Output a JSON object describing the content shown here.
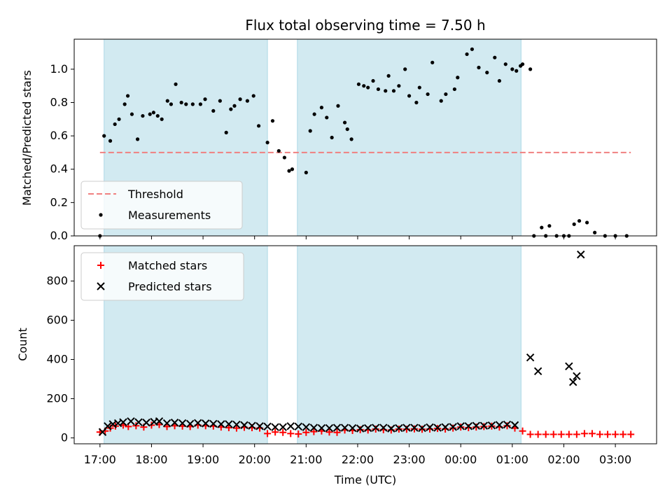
{
  "chart_data": {
    "title": "Flux total observing time = 7.50 h",
    "xlabel": "Time (UTC)",
    "x_ticks": [
      "17:00",
      "18:00",
      "19:00",
      "20:00",
      "21:00",
      "22:00",
      "23:00",
      "00:00",
      "01:00",
      "02:00",
      "03:00"
    ],
    "x_range_hours": [
      16.5,
      27.8
    ],
    "shaded_intervals_hours": [
      [
        17.08,
        20.25
      ],
      [
        20.83,
        25.17
      ]
    ],
    "colors": {
      "shade": "#add8e6",
      "threshold": "#f08080",
      "measurements": "#000000",
      "matched": "#ff0000",
      "predicted": "#000000"
    },
    "panels": [
      {
        "type": "scatter",
        "ylabel": "Matched/Predicted stars",
        "ylim": [
          0,
          1.18
        ],
        "y_ticks": [
          "0.0",
          "0.2",
          "0.4",
          "0.6",
          "0.8",
          "1.0"
        ],
        "legend": {
          "placement": "lower-left",
          "entries": [
            "Threshold",
            "Measurements"
          ]
        },
        "threshold": {
          "name": "Threshold",
          "value": 0.5,
          "x_start": 17.0,
          "x_end": 27.3
        },
        "series": [
          {
            "name": "Measurements",
            "x": [
              17.0,
              17.08,
              17.2,
              17.29,
              17.37,
              17.48,
              17.54,
              17.62,
              17.73,
              17.83,
              17.97,
              18.04,
              18.12,
              18.2,
              18.31,
              18.38,
              18.47,
              18.58,
              18.67,
              18.8,
              18.95,
              19.04,
              19.2,
              19.33,
              19.45,
              19.54,
              19.61,
              19.72,
              19.86,
              19.98,
              20.08,
              20.25,
              20.35,
              20.47,
              20.58,
              20.67,
              20.73,
              21.0,
              21.08,
              21.16,
              21.3,
              21.4,
              21.5,
              21.62,
              21.75,
              21.8,
              21.88,
              22.02,
              22.12,
              22.2,
              22.3,
              22.4,
              22.54,
              22.6,
              22.7,
              22.8,
              22.92,
              23.0,
              23.14,
              23.2,
              23.36,
              23.45,
              23.62,
              23.71,
              23.88,
              23.94,
              24.12,
              24.22,
              24.35,
              24.51,
              24.66,
              24.75,
              24.87,
              25.0,
              25.08,
              25.16,
              25.2,
              25.35,
              25.42,
              25.57,
              25.65,
              25.72,
              25.86,
              26.0,
              26.1,
              26.2,
              26.3,
              26.45,
              26.6,
              26.8,
              27.0,
              27.22
            ],
            "y": [
              0.0,
              0.6,
              0.57,
              0.67,
              0.7,
              0.79,
              0.84,
              0.73,
              0.58,
              0.72,
              0.73,
              0.74,
              0.72,
              0.7,
              0.81,
              0.79,
              0.91,
              0.8,
              0.79,
              0.79,
              0.79,
              0.82,
              0.75,
              0.81,
              0.62,
              0.76,
              0.78,
              0.82,
              0.81,
              0.84,
              0.66,
              0.56,
              0.69,
              0.51,
              0.47,
              0.39,
              0.4,
              0.38,
              0.63,
              0.73,
              0.77,
              0.71,
              0.59,
              0.78,
              0.68,
              0.64,
              0.58,
              0.91,
              0.9,
              0.89,
              0.93,
              0.88,
              0.87,
              0.96,
              0.87,
              0.9,
              1.0,
              0.84,
              0.8,
              0.89,
              0.85,
              1.04,
              0.81,
              0.85,
              0.88,
              0.95,
              1.09,
              1.12,
              1.01,
              0.98,
              1.07,
              0.93,
              1.03,
              1.0,
              0.99,
              1.02,
              1.03,
              1.0,
              0.0,
              0.05,
              0.0,
              0.06,
              0.0,
              0.0,
              0.0,
              0.07,
              0.09,
              0.08,
              0.02,
              0.0,
              0.0,
              0.0
            ]
          }
        ]
      },
      {
        "type": "scatter",
        "ylabel": "Count",
        "ylim": [
          -30,
          980
        ],
        "y_ticks": [
          "0",
          "200",
          "400",
          "600",
          "800"
        ],
        "legend": {
          "placement": "top-left",
          "entries": [
            "Matched stars",
            "Predicted stars"
          ]
        },
        "series": [
          {
            "name": "Matched stars",
            "x": [
              17.0,
              17.1,
              17.2,
              17.3,
              17.45,
              17.55,
              17.7,
              17.85,
              18.0,
              18.15,
              18.3,
              18.45,
              18.6,
              18.75,
              18.9,
              19.05,
              19.2,
              19.35,
              19.5,
              19.65,
              19.8,
              19.95,
              20.1,
              20.25,
              20.4,
              20.55,
              20.7,
              20.85,
              21.0,
              21.15,
              21.3,
              21.45,
              21.6,
              21.75,
              21.9,
              22.05,
              22.2,
              22.35,
              22.5,
              22.65,
              22.8,
              22.95,
              23.1,
              23.25,
              23.4,
              23.55,
              23.7,
              23.85,
              24.0,
              24.15,
              24.3,
              24.45,
              24.6,
              24.75,
              24.9,
              25.05,
              25.2,
              25.35,
              25.5,
              25.65,
              25.8,
              25.95,
              26.1,
              26.25,
              26.4,
              26.55,
              26.7,
              26.85,
              27.0,
              27.15,
              27.3
            ],
            "y": [
              30,
              35,
              50,
              60,
              65,
              58,
              62,
              55,
              65,
              68,
              58,
              62,
              60,
              58,
              65,
              62,
              60,
              55,
              52,
              50,
              54,
              52,
              50,
              22,
              30,
              28,
              22,
              20,
              28,
              32,
              35,
              30,
              28,
              40,
              38,
              42,
              40,
              45,
              42,
              40,
              45,
              44,
              46,
              44,
              45,
              48,
              45,
              50,
              55,
              52,
              55,
              58,
              60,
              55,
              62,
              50,
              35,
              18,
              18,
              18,
              18,
              18,
              18,
              18,
              22,
              22,
              18,
              18,
              18,
              18,
              18
            ]
          },
          {
            "name": "Predicted stars",
            "x": [
              17.05,
              17.15,
              17.25,
              17.35,
              17.45,
              17.6,
              17.75,
              17.9,
              18.05,
              18.15,
              18.3,
              18.45,
              18.6,
              18.75,
              18.9,
              19.05,
              19.2,
              19.35,
              19.5,
              19.65,
              19.8,
              19.95,
              20.1,
              20.25,
              20.4,
              20.55,
              20.7,
              20.85,
              21.0,
              21.15,
              21.3,
              21.45,
              21.6,
              21.75,
              21.9,
              22.05,
              22.2,
              22.35,
              22.5,
              22.65,
              22.8,
              22.95,
              23.1,
              23.25,
              23.4,
              23.55,
              23.7,
              23.85,
              24.0,
              24.15,
              24.3,
              24.45,
              24.6,
              24.75,
              24.9,
              25.05,
              25.35,
              25.5,
              26.1,
              26.18,
              26.25,
              26.33
            ],
            "y": [
              30,
              60,
              70,
              75,
              80,
              85,
              80,
              78,
              82,
              85,
              75,
              78,
              75,
              72,
              76,
              74,
              72,
              70,
              70,
              68,
              65,
              62,
              60,
              58,
              55,
              55,
              60,
              58,
              55,
              52,
              50,
              50,
              52,
              52,
              50,
              48,
              50,
              52,
              52,
              48,
              50,
              52,
              52,
              50,
              54,
              52,
              55,
              56,
              60,
              60,
              62,
              62,
              64,
              66,
              68,
              65,
              410,
              340,
              365,
              285,
              315,
              935
            ]
          }
        ]
      }
    ]
  }
}
